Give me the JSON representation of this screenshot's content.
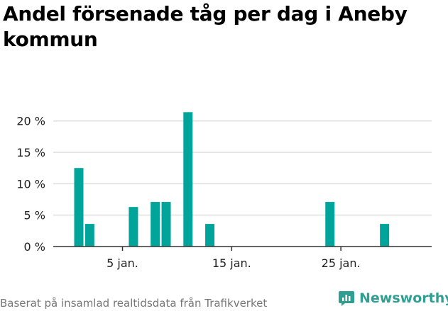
{
  "chart_data": {
    "type": "bar",
    "title": "Andel försenade tåg per dag i Aneby kommun",
    "xlabel": "",
    "ylabel": "",
    "x": [
      "1 jan.",
      "2 jan.",
      "3 jan.",
      "4 jan.",
      "5 jan.",
      "6 jan.",
      "7 jan.",
      "8 jan.",
      "9 jan.",
      "10 jan.",
      "11 jan.",
      "12 jan.",
      "13 jan.",
      "14 jan.",
      "15 jan.",
      "16 jan.",
      "17 jan.",
      "18 jan.",
      "19 jan.",
      "20 jan.",
      "21 jan.",
      "22 jan.",
      "23 jan.",
      "24 jan.",
      "25 jan.",
      "26 jan.",
      "27 jan.",
      "28 jan.",
      "29 jan.",
      "30 jan.",
      "31 jan."
    ],
    "values": [
      12.5,
      3.6,
      0,
      0,
      0,
      6.3,
      0,
      7.1,
      7.1,
      0,
      21.4,
      0,
      3.6,
      0,
      0,
      0,
      0,
      0,
      0,
      0,
      0,
      0,
      0,
      7.1,
      0,
      0,
      0,
      0,
      3.6,
      0,
      0
    ],
    "ylim": [
      0,
      22
    ],
    "yticks": [
      0,
      5,
      10,
      15,
      20
    ],
    "ytick_labels": [
      "0 %",
      "5 %",
      "10 %",
      "15 %",
      "20 %"
    ],
    "xticks": [
      5,
      15,
      25
    ],
    "xtick_labels": [
      "5 jan.",
      "15 jan.",
      "25 jan."
    ],
    "grid": true,
    "bar_color": "#00a49a"
  },
  "footer": {
    "source": "Baserat på insamlad realtidsdata från Trafikverket",
    "brand": "Newsworthy"
  },
  "colors": {
    "brand": "#2f9e93",
    "grid": "#dddddd",
    "axis": "#333333"
  }
}
